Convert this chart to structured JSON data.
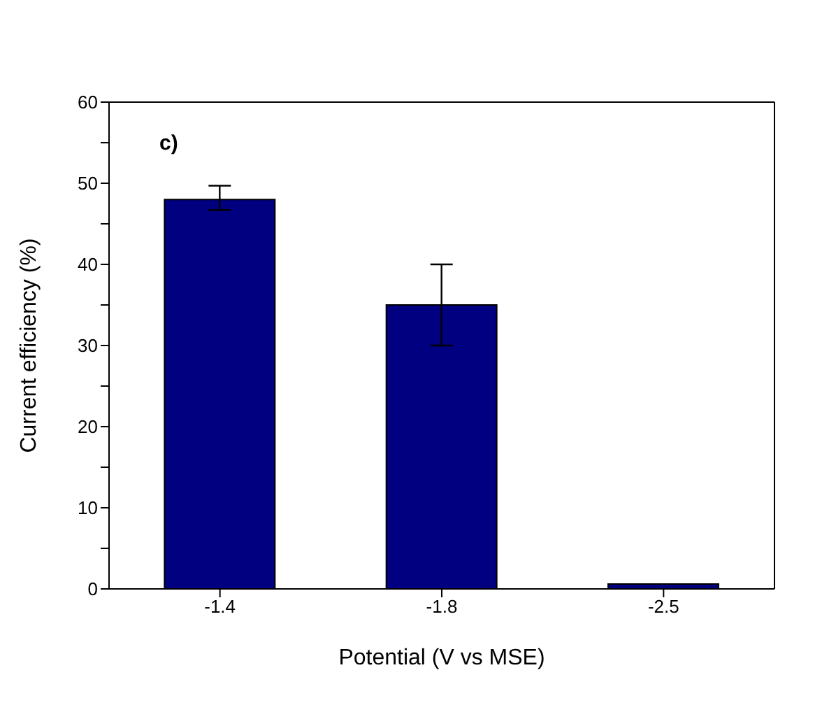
{
  "chart_data": {
    "type": "bar",
    "xlabel": "Potential (V vs MSE)",
    "ylabel": "Current efficiency (%)",
    "annotations": [
      "c)"
    ],
    "categories": [
      "-1.4",
      "-1.8",
      "-2.5"
    ],
    "values": [
      48,
      35,
      0.6
    ],
    "errors": [
      [
        46.7,
        49.7
      ],
      5,
      null
    ],
    "color": "#000080",
    "ylim": [
      0,
      60
    ],
    "yticks": [
      0,
      {
        "value": 5,
        "label": null
      },
      10,
      {
        "value": 15,
        "label": null
      },
      20,
      {
        "value": 25,
        "label": null
      },
      30,
      {
        "value": 35,
        "label": null
      },
      40,
      {
        "value": 45,
        "label": null
      },
      50,
      {
        "value": 55,
        "label": null
      },
      60
    ],
    "grid": false
  }
}
